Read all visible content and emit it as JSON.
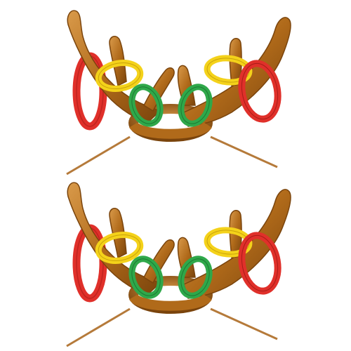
{
  "image": {
    "subject": "inflatable-reindeer-antler-ring-toss",
    "sets": [
      {
        "id": "antler-set-top",
        "rings": [
          "red",
          "yellow",
          "green",
          "green",
          "yellow",
          "red"
        ]
      },
      {
        "id": "antler-set-bottom",
        "rings": [
          "red",
          "yellow",
          "green",
          "green",
          "yellow",
          "red"
        ]
      }
    ],
    "colors": {
      "background": "#ffffff",
      "antler": "#b06a1a",
      "antler_dark": "#7a440c",
      "antler_highlight": "#d99a4a",
      "ring_red": "#e0302a",
      "ring_red_dark": "#a81c18",
      "ring_yellow": "#f4d21a",
      "ring_yellow_dark": "#c9a20a",
      "ring_green": "#2fa84a",
      "ring_green_dark": "#1c7a32",
      "strap": "#b57a3a"
    }
  }
}
